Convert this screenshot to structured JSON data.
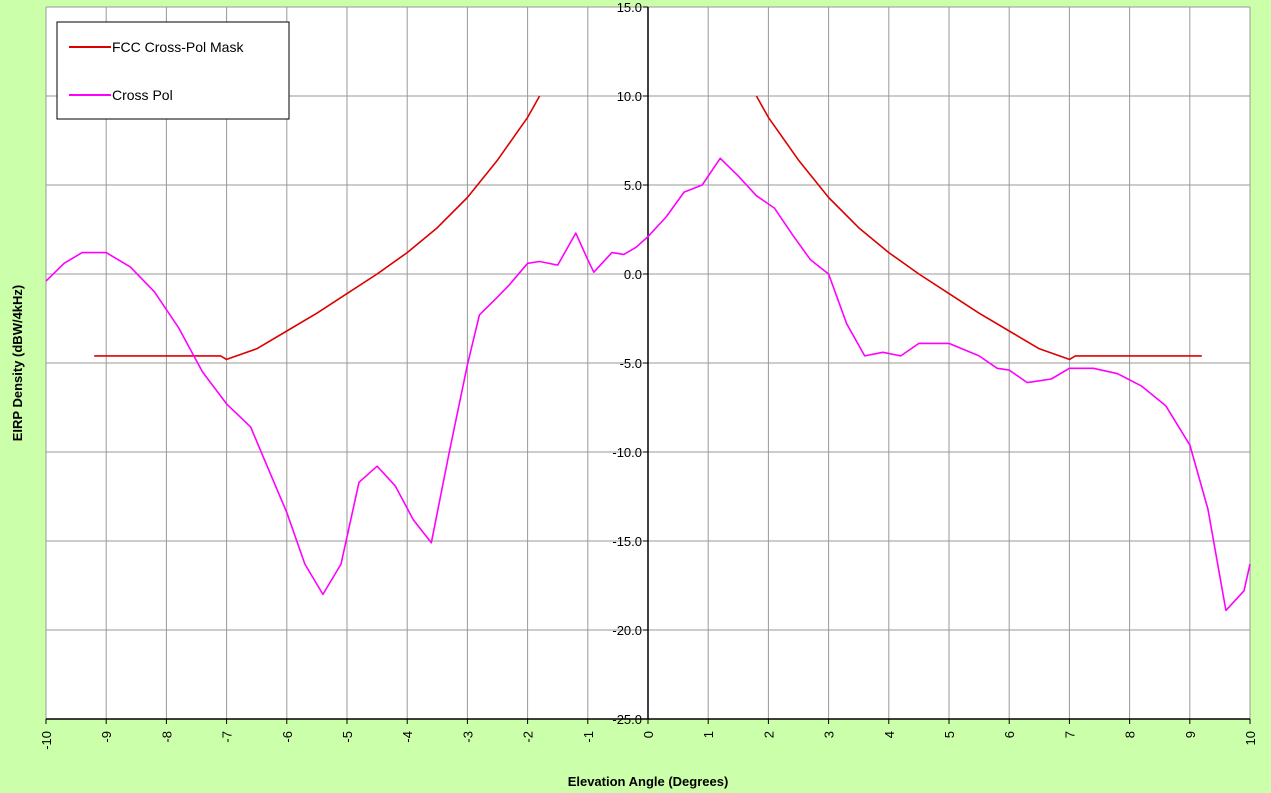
{
  "chart_data": {
    "type": "line",
    "title": "",
    "xlabel": "Elevation Angle (Degrees)",
    "ylabel": "EIRP Density (dBW/4kHz)",
    "xlim": [
      -10,
      10
    ],
    "ylim": [
      -25,
      15
    ],
    "x_ticks": [
      -10,
      -9,
      -8,
      -7,
      -6,
      -5,
      -4,
      -3,
      -2,
      -1,
      0,
      1,
      2,
      3,
      4,
      5,
      6,
      7,
      8,
      9,
      10
    ],
    "y_ticks": [
      -25,
      -20,
      -15,
      -10,
      -5,
      0,
      5,
      10,
      15
    ],
    "x_tick_labels": [
      "-10",
      "-9",
      "-8",
      "-7",
      "-6",
      "-5",
      "-4",
      "-3",
      "-2",
      "-1",
      "0",
      "1",
      "2",
      "3",
      "4",
      "5",
      "6",
      "7",
      "8",
      "9",
      "10"
    ],
    "y_tick_labels": [
      "-25.0",
      "-20.0",
      "-15.0",
      "-10.0",
      "-5.0",
      "0.0",
      "5.0",
      "10.0",
      "15.0"
    ],
    "grid": true,
    "legend_position": "top-left",
    "background_color": "#CCFFAA",
    "plot_background_color": "#FFFFFF",
    "series": [
      {
        "name": "FCC Cross-Pol Mask",
        "color": "#DD0000",
        "segments": [
          [
            [
              -9.2,
              -4.6
            ],
            [
              -7.1,
              -4.6
            ],
            [
              -7.0,
              -4.8
            ],
            [
              -6.5,
              -4.2
            ],
            [
              -6.0,
              -3.2
            ],
            [
              -5.5,
              -2.2
            ],
            [
              -5.0,
              -1.1
            ],
            [
              -4.5,
              0.0
            ],
            [
              -4.0,
              1.2
            ],
            [
              -3.5,
              2.6
            ],
            [
              -3.0,
              4.3
            ],
            [
              -2.5,
              6.4
            ],
            [
              -2.0,
              8.8
            ],
            [
              -1.8,
              10.0
            ]
          ],
          [
            [
              1.8,
              10.0
            ],
            [
              2.0,
              8.8
            ],
            [
              2.5,
              6.4
            ],
            [
              3.0,
              4.3
            ],
            [
              3.5,
              2.6
            ],
            [
              4.0,
              1.2
            ],
            [
              4.5,
              0.0
            ],
            [
              5.0,
              -1.1
            ],
            [
              5.5,
              -2.2
            ],
            [
              6.0,
              -3.2
            ],
            [
              6.5,
              -4.2
            ],
            [
              7.0,
              -4.8
            ],
            [
              7.1,
              -4.6
            ],
            [
              9.2,
              -4.6
            ]
          ]
        ]
      },
      {
        "name": "Cross Pol",
        "color": "#FF00FF",
        "segments": [
          [
            [
              -10.0,
              -0.4
            ],
            [
              -9.7,
              0.6
            ],
            [
              -9.4,
              1.2
            ],
            [
              -9.0,
              1.2
            ],
            [
              -8.6,
              0.4
            ],
            [
              -8.2,
              -1.0
            ],
            [
              -7.8,
              -3.0
            ],
            [
              -7.4,
              -5.5
            ],
            [
              -7.0,
              -7.3
            ],
            [
              -6.6,
              -8.6
            ],
            [
              -6.3,
              -11.0
            ],
            [
              -6.0,
              -13.4
            ],
            [
              -5.7,
              -16.3
            ],
            [
              -5.4,
              -18.0
            ],
            [
              -5.1,
              -16.3
            ],
            [
              -4.8,
              -11.7
            ],
            [
              -4.5,
              -10.8
            ],
            [
              -4.2,
              -11.9
            ],
            [
              -3.9,
              -13.8
            ],
            [
              -3.6,
              -15.1
            ],
            [
              -3.3,
              -10.0
            ],
            [
              -3.0,
              -5.1
            ],
            [
              -2.8,
              -2.3
            ],
            [
              -2.5,
              -1.3
            ],
            [
              -2.3,
              -0.6
            ],
            [
              -2.0,
              0.6
            ],
            [
              -1.8,
              0.7
            ],
            [
              -1.5,
              0.5
            ],
            [
              -1.2,
              2.3
            ],
            [
              -1.0,
              0.8
            ],
            [
              -0.9,
              0.1
            ],
            [
              -0.6,
              1.2
            ],
            [
              -0.4,
              1.1
            ],
            [
              -0.2,
              1.5
            ],
            [
              0.0,
              2.1
            ],
            [
              0.3,
              3.2
            ],
            [
              0.6,
              4.6
            ],
            [
              0.9,
              5.0
            ],
            [
              1.2,
              6.5
            ],
            [
              1.5,
              5.5
            ],
            [
              1.8,
              4.4
            ],
            [
              2.1,
              3.7
            ],
            [
              2.4,
              2.2
            ],
            [
              2.7,
              0.8
            ],
            [
              3.0,
              0.0
            ],
            [
              3.3,
              -2.8
            ],
            [
              3.6,
              -4.6
            ],
            [
              3.9,
              -4.4
            ],
            [
              4.2,
              -4.6
            ],
            [
              4.5,
              -3.9
            ],
            [
              5.0,
              -3.9
            ],
            [
              5.5,
              -4.6
            ],
            [
              5.8,
              -5.3
            ],
            [
              6.0,
              -5.4
            ],
            [
              6.3,
              -6.1
            ],
            [
              6.7,
              -5.9
            ],
            [
              7.0,
              -5.3
            ],
            [
              7.4,
              -5.3
            ],
            [
              7.8,
              -5.6
            ],
            [
              8.2,
              -6.3
            ],
            [
              8.6,
              -7.4
            ],
            [
              9.0,
              -9.6
            ],
            [
              9.3,
              -13.2
            ],
            [
              9.6,
              -18.9
            ],
            [
              9.9,
              -17.8
            ],
            [
              10.0,
              -16.3
            ]
          ]
        ]
      }
    ]
  }
}
